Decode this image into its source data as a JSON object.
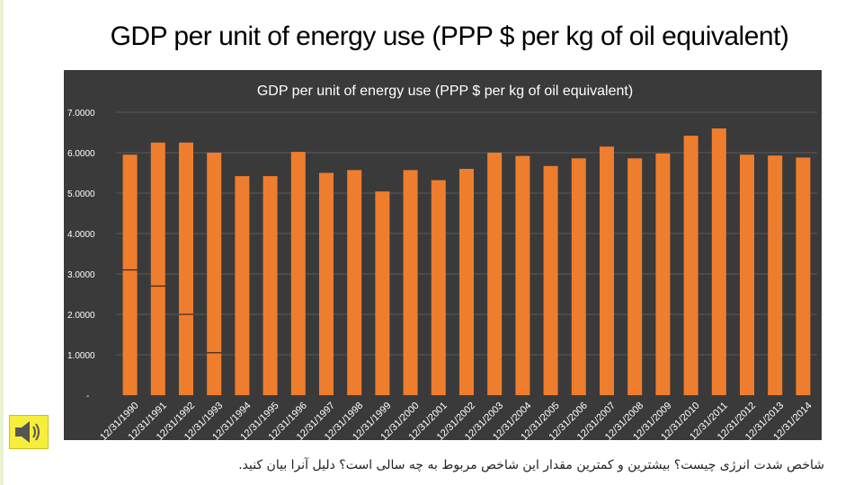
{
  "slide": {
    "title": "GDP per unit of energy use (PPP $ per kg of oil equivalent)",
    "caption": "شاخص شدت انرژی چیست؟ بیشترین و کمترین مقدار این شاخص مربوط به چه سالی است؟ دلیل آنرا بیان کنید."
  },
  "icons": {
    "speaker": "speaker-icon"
  },
  "colors": {
    "bar": "#ef7d2e",
    "bar_light": "#f8a25c",
    "plot_bg": "#3a3a3a",
    "grid": "#5a5a5a",
    "text_light": "#ffffff",
    "speaker_bg": "#f6ee3a"
  },
  "chart_data": {
    "type": "bar",
    "title": "GDP per unit of energy use (PPP $ per kg of oil equivalent)",
    "xlabel": "",
    "ylabel": "",
    "ylim": [
      0,
      7
    ],
    "y_ticks": [
      "-",
      "1.0000",
      "2.0000",
      "3.0000",
      "4.0000",
      "5.0000",
      "6.0000",
      "7.0000"
    ],
    "grid": true,
    "categories": [
      "12/31/1990",
      "12/31/1991",
      "12/31/1992",
      "12/31/1993",
      "12/31/1994",
      "12/31/1995",
      "12/31/1996",
      "12/31/1997",
      "12/31/1998",
      "12/31/1999",
      "12/31/2000",
      "12/31/2001",
      "12/31/2002",
      "12/31/2003",
      "12/31/2004",
      "12/31/2005",
      "12/31/2006",
      "12/31/2007",
      "12/31/2008",
      "12/31/2009",
      "12/31/2010",
      "12/31/2011",
      "12/31/2012",
      "12/31/2013",
      "12/31/2014"
    ],
    "values": [
      5.95,
      6.25,
      6.25,
      6.0,
      5.42,
      5.42,
      6.02,
      5.5,
      5.57,
      5.04,
      5.57,
      5.32,
      5.6,
      6.0,
      5.92,
      5.67,
      5.86,
      6.15,
      5.86,
      5.98,
      6.42,
      6.6,
      5.95,
      5.93,
      5.88
    ],
    "markers": [
      3.1,
      2.7,
      2.0,
      1.05
    ]
  }
}
